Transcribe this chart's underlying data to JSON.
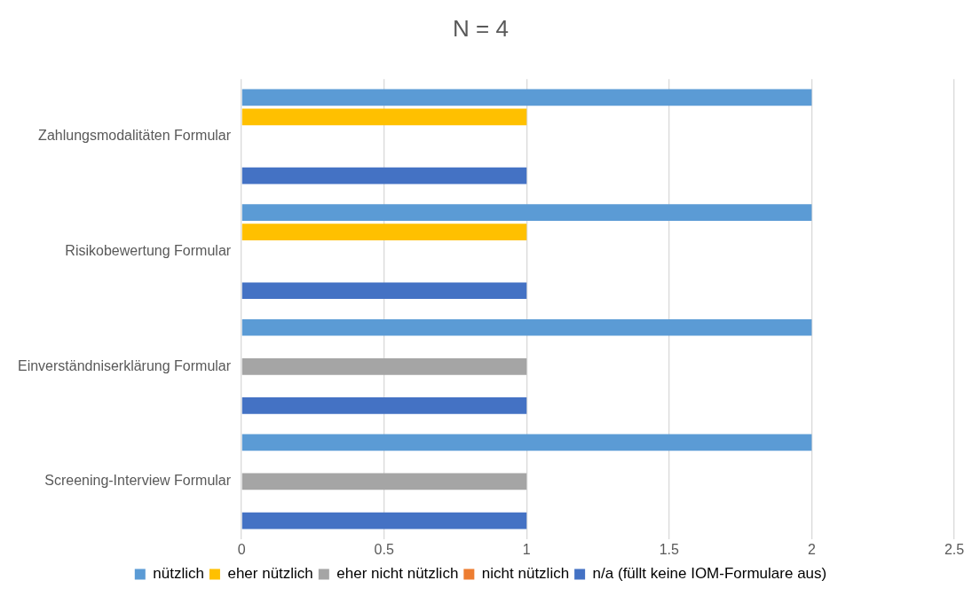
{
  "chart_data": {
    "type": "bar",
    "orientation": "horizontal",
    "title": "N = 4",
    "categories": [
      "Zahlungsmodalitäten Formular",
      "Risikobewertung Formular",
      "Einverständniserklärung Formular",
      "Screening-Interview Formular"
    ],
    "series": [
      {
        "name": "nützlich",
        "color": "#5b9bd5",
        "values": [
          2,
          2,
          2,
          2
        ]
      },
      {
        "name": "eher nützlich",
        "color": "#ffc000",
        "values": [
          1,
          1,
          null,
          null
        ]
      },
      {
        "name": "eher nicht nützlich",
        "color": "#a5a5a5",
        "values": [
          null,
          null,
          1,
          1
        ]
      },
      {
        "name": "nicht nützlich",
        "color": "#ed7d31",
        "values": [
          null,
          null,
          null,
          null
        ]
      },
      {
        "name": "n/a (füllt keine IOM-Formulare aus)",
        "color": "#4472c4",
        "values": [
          1,
          1,
          1,
          1
        ]
      }
    ],
    "xlim": [
      0,
      2.5
    ],
    "xticks": [
      0,
      0.5,
      1,
      1.5,
      2,
      2.5
    ],
    "grid": "x",
    "legend": "bottom"
  }
}
